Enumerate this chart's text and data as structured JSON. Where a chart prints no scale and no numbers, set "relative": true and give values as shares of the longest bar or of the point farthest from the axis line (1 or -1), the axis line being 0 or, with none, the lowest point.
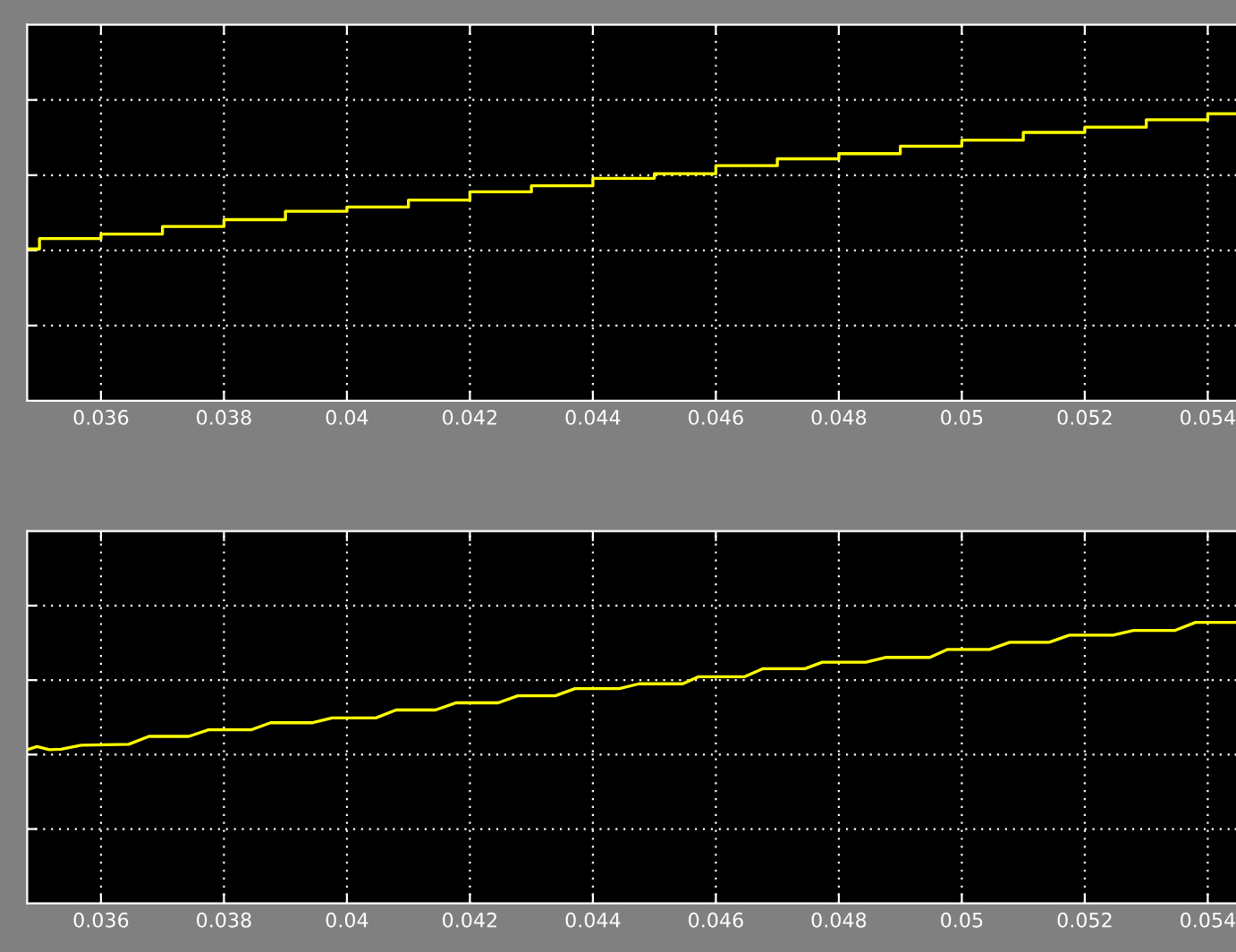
{
  "chart_data": [
    {
      "type": "step",
      "relative": true,
      "xlim": [
        0.0348,
        0.0546
      ],
      "xticks": [
        0.036,
        0.038,
        0.04,
        0.042,
        0.044,
        0.046,
        0.048,
        0.05,
        0.052,
        0.054
      ],
      "grid": true,
      "tick_labels": "x",
      "legend": false,
      "series": [
        {
          "color": "#ffff00",
          "x": [
            0.0348,
            0.035,
            0.036,
            0.037,
            0.038,
            0.039,
            0.04,
            0.041,
            0.042,
            0.043,
            0.044,
            0.045,
            0.046,
            0.047,
            0.048,
            0.049,
            0.05,
            0.051,
            0.052,
            0.053,
            0.054,
            0.0545
          ],
          "values": [
            0.529,
            0.565,
            0.581,
            0.607,
            0.631,
            0.66,
            0.675,
            0.699,
            0.728,
            0.749,
            0.775,
            0.791,
            0.819,
            0.843,
            0.861,
            0.887,
            0.908,
            0.935,
            0.953,
            0.979,
            1.0,
            1.0
          ]
        }
      ]
    },
    {
      "type": "line",
      "relative": true,
      "xlim": [
        0.0348,
        0.0546
      ],
      "xticks": [
        0.036,
        0.038,
        0.04,
        0.042,
        0.044,
        0.046,
        0.048,
        0.05,
        0.052,
        0.054
      ],
      "grid": true,
      "tick_labels": "x",
      "legend": false,
      "series": [
        {
          "color": "#ffff00",
          "x": [
            0.0348,
            0.03496,
            0.03516,
            0.03535,
            0.03568,
            0.03645,
            0.03678,
            0.03743,
            0.03775,
            0.03844,
            0.03876,
            0.03943,
            0.03976,
            0.04047,
            0.0408,
            0.04144,
            0.04177,
            0.04246,
            0.04278,
            0.04339,
            0.04371,
            0.04443,
            0.04475,
            0.04546,
            0.04572,
            0.04647,
            0.04676,
            0.04745,
            0.04773,
            0.04844,
            0.04877,
            0.04948,
            0.04977,
            0.05045,
            0.05078,
            0.05142,
            0.05175,
            0.05246,
            0.05279,
            0.05347,
            0.0538,
            0.05447,
            0.0545
          ],
          "values": [
            0.541,
            0.552,
            0.541,
            0.543,
            0.557,
            0.56,
            0.588,
            0.588,
            0.611,
            0.611,
            0.636,
            0.636,
            0.653,
            0.653,
            0.681,
            0.681,
            0.706,
            0.706,
            0.731,
            0.731,
            0.756,
            0.756,
            0.773,
            0.773,
            0.798,
            0.798,
            0.826,
            0.826,
            0.849,
            0.849,
            0.866,
            0.866,
            0.894,
            0.894,
            0.919,
            0.919,
            0.944,
            0.944,
            0.961,
            0.961,
            0.989,
            0.989,
            1.0
          ]
        }
      ]
    }
  ]
}
